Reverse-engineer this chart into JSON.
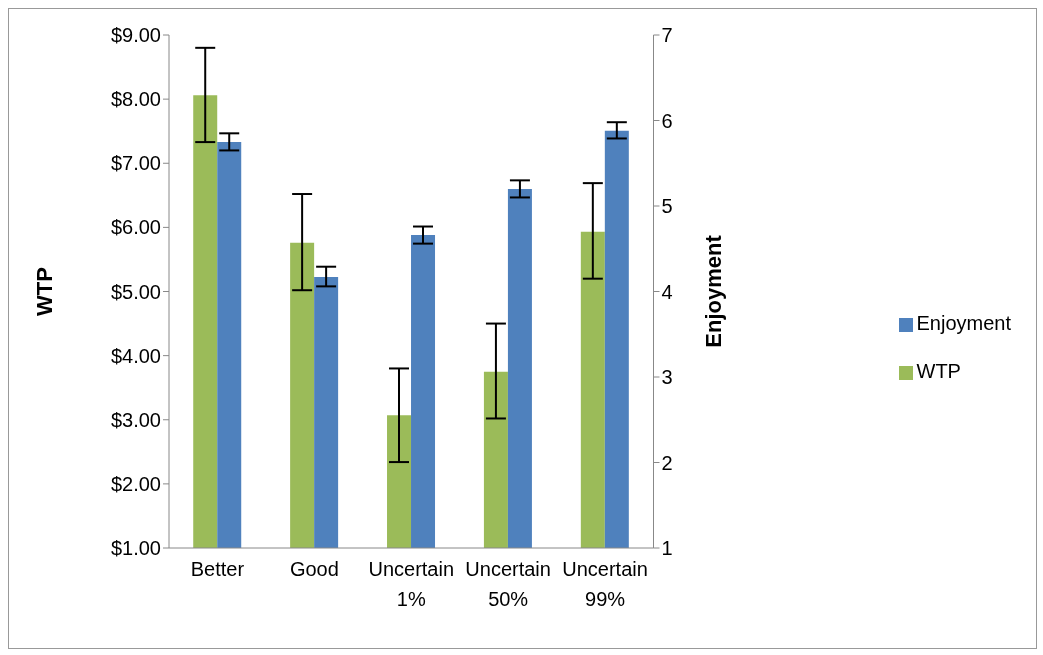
{
  "chart_data": {
    "type": "bar",
    "categories": [
      "Better",
      "Good",
      "Uncertain 1%",
      "Uncertain 50%",
      "Uncertain 99%"
    ],
    "series": [
      {
        "name": "WTP",
        "color": "#9bbb59",
        "values": [
          8.06,
          5.76,
          3.07,
          3.75,
          5.93
        ],
        "errors": [
          [
            7.33,
            8.8
          ],
          [
            5.02,
            6.52
          ],
          [
            2.34,
            3.8
          ],
          [
            3.02,
            4.5
          ],
          [
            5.2,
            6.69
          ]
        ]
      },
      {
        "name": "Enjoyment",
        "color": "#4f81bd",
        "axis": "y2",
        "values": [
          5.75,
          4.17,
          4.66,
          5.2,
          5.88
        ],
        "errors": [
          [
            5.65,
            5.85
          ],
          [
            4.06,
            4.29
          ],
          [
            4.56,
            4.76
          ],
          [
            5.1,
            5.3
          ],
          [
            5.79,
            5.98
          ]
        ]
      }
    ],
    "ylabel": "WTP",
    "y2label": "Enjoyment",
    "ylim": [
      1,
      9
    ],
    "yticks": [
      {
        "value": 1,
        "label": "$1.00"
      },
      {
        "value": 2,
        "label": "$2.00"
      },
      {
        "value": 3,
        "label": "$3.00"
      },
      {
        "value": 4,
        "label": "$4.00"
      },
      {
        "value": 5,
        "label": "$5.00"
      },
      {
        "value": 6,
        "label": "$6.00"
      },
      {
        "value": 7,
        "label": "$7.00"
      },
      {
        "value": 8,
        "label": "$8.00"
      },
      {
        "value": 9,
        "label": "$9.00"
      }
    ],
    "y2lim": [
      1,
      7
    ],
    "y2ticks": [
      1,
      2,
      3,
      4,
      5,
      6,
      7
    ],
    "grid": false,
    "legend": "right"
  }
}
